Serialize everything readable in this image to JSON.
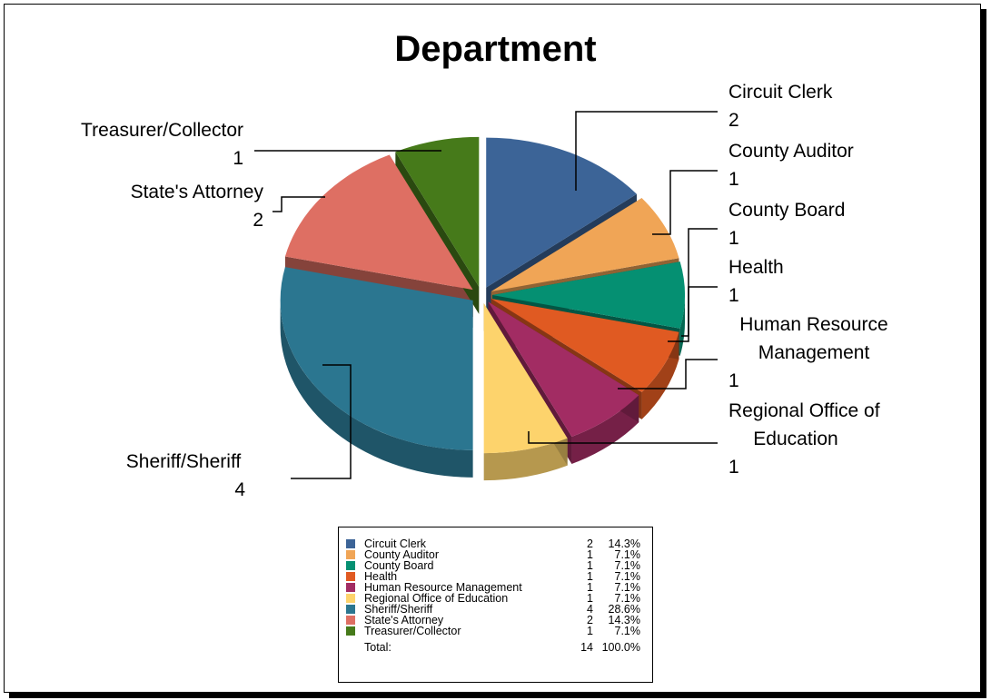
{
  "chart_data": {
    "type": "pie",
    "title": "Department",
    "slices": [
      {
        "label": "Circuit Clerk",
        "value": 2,
        "percent": "14.3%",
        "color": "#3c6497"
      },
      {
        "label": "County Auditor",
        "value": 1,
        "percent": "7.1%",
        "color": "#f0a556"
      },
      {
        "label": "County Board",
        "value": 1,
        "percent": "7.1%",
        "color": "#059072"
      },
      {
        "label": "Health",
        "value": 1,
        "percent": "7.1%",
        "color": "#e05a22"
      },
      {
        "label": "Human Resource Management",
        "value": 1,
        "percent": "7.1%",
        "color": "#a22c63"
      },
      {
        "label": "Regional Office of Education",
        "value": 1,
        "percent": "7.1%",
        "color": "#fdd36c"
      },
      {
        "label": "Sheriff/Sheriff",
        "value": 4,
        "percent": "28.6%",
        "color": "#2b7690"
      },
      {
        "label": "State's Attorney",
        "value": 2,
        "percent": "14.3%",
        "color": "#de6f63"
      },
      {
        "label": "Treasurer/Collector",
        "value": 1,
        "percent": "7.1%",
        "color": "#467a1a"
      }
    ],
    "callouts": [
      {
        "lines": [
          "Circuit Clerk",
          "2"
        ]
      },
      {
        "lines": [
          "County Auditor",
          "1"
        ]
      },
      {
        "lines": [
          "County Board",
          "1"
        ]
      },
      {
        "lines": [
          "Health",
          "1"
        ]
      },
      {
        "lines": [
          "Human Resource",
          "Management",
          "1"
        ]
      },
      {
        "lines": [
          "Regional Office of",
          "Education",
          "1"
        ]
      },
      {
        "lines": [
          "Sheriff/Sheriff",
          "4"
        ]
      },
      {
        "lines": [
          "State's Attorney",
          "2"
        ]
      },
      {
        "lines": [
          "Treasurer/Collector",
          "1"
        ]
      }
    ],
    "legend": {
      "total_label": "Total:",
      "total_value": 14,
      "total_percent": "100.0%"
    }
  }
}
